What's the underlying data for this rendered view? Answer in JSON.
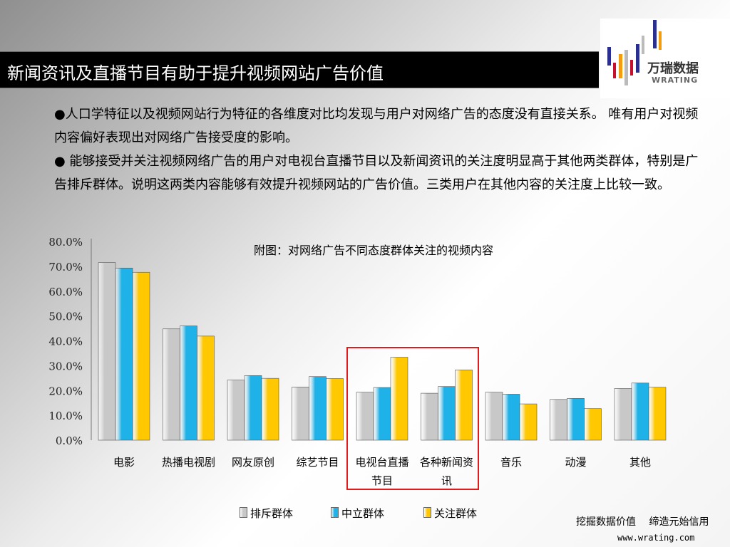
{
  "header": {
    "title": "新闻资讯及直播节目有助于提升视频网站广告价值"
  },
  "logo": {
    "text_cn": "万瑞数据",
    "text_en": "WRATING"
  },
  "bullets": [
    "●人口学特征以及视频网站行为特征的各维度对比均发现与用户对网络广告的态度没有直接关系。 唯有用户对视频内容偏好表现出对网络广告接受度的影响。",
    "● 能够接受并关注视频网络广告的用户对电视台直播节目以及新闻资讯的关注度明显高于其他两类群体，特别是广告排斥群体。说明这两类内容能够有效提升视频网站的广告价值。三类用户在其他内容的关注度上比较一致。"
  ],
  "footer": {
    "slogan": "挖掘数据价值　 缔造元始信用",
    "url": "www.wrating.com"
  },
  "chart_data": {
    "type": "bar",
    "title": "附图：对网络广告不同态度群体关注的视频内容",
    "categories": [
      "电影",
      "热播电视剧",
      "网友原创",
      "综艺节目",
      "电视台直播节目",
      "各种新闻资讯",
      "音乐",
      "动漫",
      "其他"
    ],
    "series": [
      {
        "name": "排斥群体",
        "color": "#c8c8c8",
        "values": [
          71.5,
          44.8,
          24.2,
          21.4,
          19.3,
          18.9,
          19.3,
          16.4,
          20.8
        ]
      },
      {
        "name": "中立群体",
        "color": "#1fb2e8",
        "values": [
          69.3,
          46.0,
          26.0,
          25.6,
          21.2,
          21.6,
          18.5,
          16.8,
          23.0
        ]
      },
      {
        "name": "关注群体",
        "color": "#ffc800",
        "values": [
          67.6,
          41.9,
          24.9,
          24.8,
          33.4,
          28.3,
          14.6,
          12.7,
          21.3
        ]
      }
    ],
    "yticks": [
      "0.0%",
      "10.0%",
      "20.0%",
      "30.0%",
      "40.0%",
      "50.0%",
      "60.0%",
      "70.0%",
      "80.0%"
    ],
    "ylim": [
      0,
      80
    ],
    "grid": false,
    "legend_position": "bottom"
  }
}
